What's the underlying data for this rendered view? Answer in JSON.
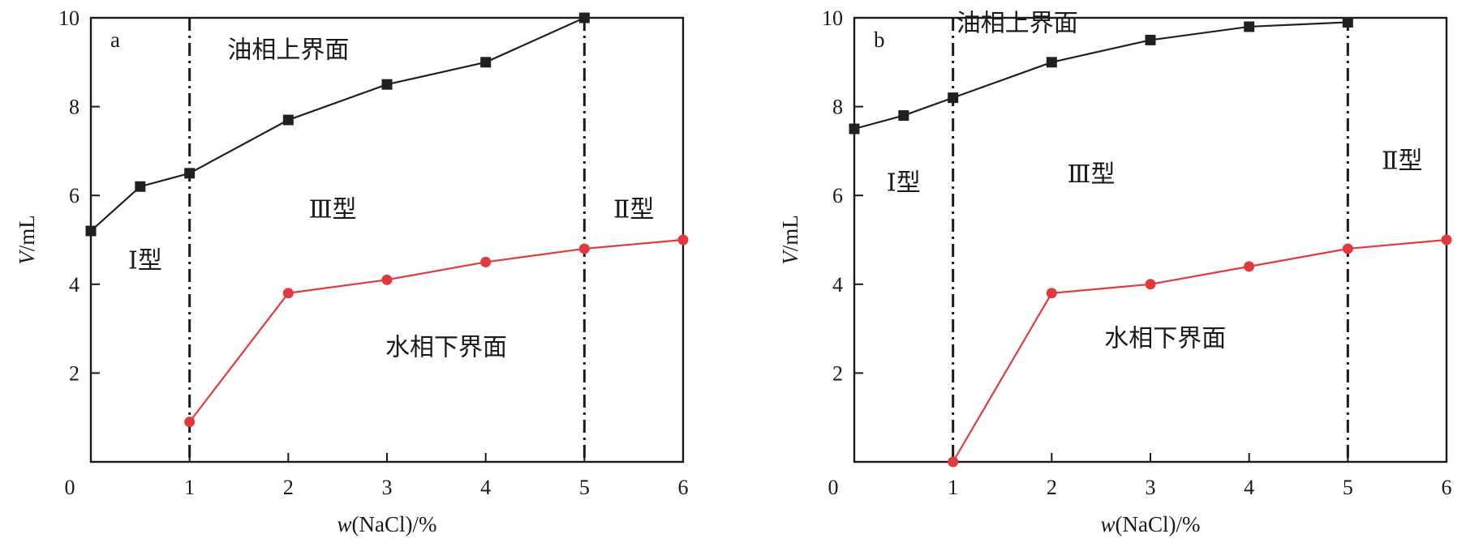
{
  "chart_data": [
    {
      "type": "line",
      "panel_label": "a",
      "xlabel_var": "w",
      "xlabel_rest": "(NaCl)/%",
      "ylabel_var": "V",
      "ylabel_rest": "/mL",
      "xlim": [
        0,
        6
      ],
      "ylim": [
        0,
        10
      ],
      "x_ticks": [
        1,
        2,
        3,
        4,
        5,
        6
      ],
      "y_ticks": [
        2,
        4,
        6,
        8,
        10
      ],
      "origin_label": "0",
      "grid": false,
      "vlines": [
        1,
        5
      ],
      "series": [
        {
          "marker": "square",
          "color": "#231f20",
          "x": [
            0,
            0.5,
            1,
            2,
            3,
            4,
            5
          ],
          "y": [
            5.2,
            6.2,
            6.5,
            7.7,
            8.5,
            9.0,
            10.0
          ]
        },
        {
          "marker": "circle",
          "color": "#e03a3e",
          "x": [
            1,
            2,
            3,
            4,
            5,
            6
          ],
          "y": [
            0.9,
            3.8,
            4.1,
            4.5,
            4.8,
            5.0
          ]
        }
      ],
      "annotations": [
        {
          "text": "油相上界面",
          "x": 2.0,
          "y": 9.1
        },
        {
          "text": "Ⅲ型",
          "x": 2.45,
          "y": 5.5
        },
        {
          "text": "Ⅱ型",
          "x": 5.5,
          "y": 5.5
        },
        {
          "text": "Ⅰ型",
          "x": 0.55,
          "y": 4.35
        },
        {
          "text": "水相下界面",
          "x": 3.6,
          "y": 2.4
        }
      ]
    },
    {
      "type": "line",
      "panel_label": "b",
      "xlabel_var": "w",
      "xlabel_rest": "(NaCl)/%",
      "ylabel_var": "V",
      "ylabel_rest": "/mL",
      "xlim": [
        0,
        6
      ],
      "ylim": [
        0,
        10
      ],
      "x_ticks": [
        1,
        2,
        3,
        4,
        5,
        6
      ],
      "y_ticks": [
        2,
        4,
        6,
        8,
        10
      ],
      "origin_label": "0",
      "grid": false,
      "vlines": [
        1,
        5
      ],
      "series": [
        {
          "marker": "square",
          "color": "#231f20",
          "x": [
            0,
            0.5,
            1,
            2,
            3,
            4,
            5
          ],
          "y": [
            7.5,
            7.8,
            8.2,
            9.0,
            9.5,
            9.8,
            9.9
          ]
        },
        {
          "marker": "circle",
          "color": "#e03a3e",
          "x": [
            1,
            2,
            3,
            4,
            5,
            6
          ],
          "y": [
            0.0,
            3.8,
            4.0,
            4.4,
            4.8,
            5.0
          ]
        }
      ],
      "annotations": [
        {
          "text": "油相上界面",
          "x": 1.65,
          "y": 9.7
        },
        {
          "text": "Ⅲ型",
          "x": 2.4,
          "y": 6.3
        },
        {
          "text": "Ⅱ型",
          "x": 5.55,
          "y": 6.6
        },
        {
          "text": "Ⅰ型",
          "x": 0.5,
          "y": 6.1
        },
        {
          "text": "水相下界面",
          "x": 3.15,
          "y": 2.6
        }
      ]
    }
  ]
}
